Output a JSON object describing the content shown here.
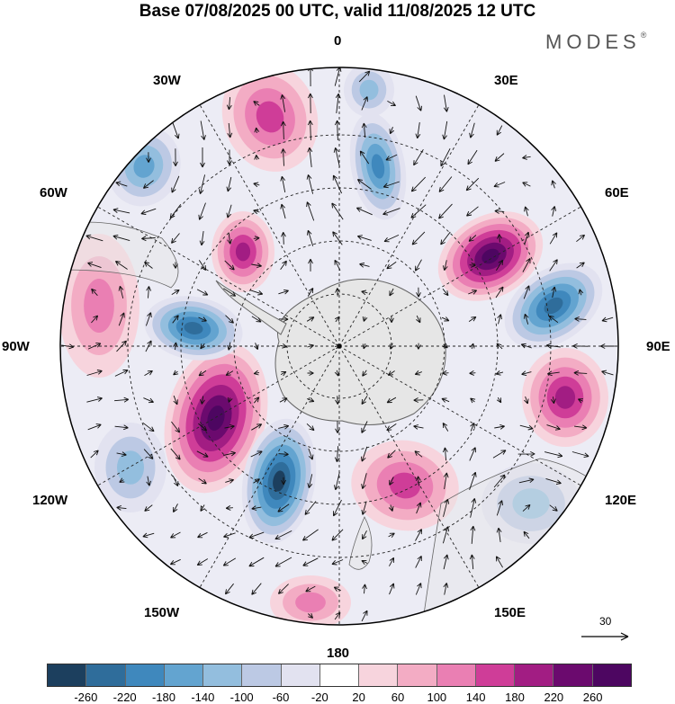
{
  "title": "Base 07/08/2025 00 UTC, valid 11/08/2025 12 UTC",
  "brand": {
    "name": "MODES",
    "mark": "®"
  },
  "map": {
    "projection": "south-polar-stereographic",
    "longitude_labels": {
      "n0": "0",
      "n30e": "30E",
      "n60e": "60E",
      "n90e": "90E",
      "n120e": "120E",
      "n150e": "150E",
      "n180": "180",
      "n150w": "150W",
      "n120w": "120W",
      "n90w": "90W",
      "n60w": "60W",
      "n30w": "30W"
    },
    "reference_vector": "30",
    "colors": {
      "land": "#e6e6e6",
      "coast": "#666666",
      "grid": "#222222",
      "vector": "#111111"
    }
  },
  "legend": {
    "ticks": [
      "-260",
      "-220",
      "-180",
      "-140",
      "-100",
      "-60",
      "-20",
      "20",
      "60",
      "100",
      "140",
      "180",
      "220",
      "260"
    ],
    "colors": [
      "#1c3f5e",
      "#2f6d9b",
      "#3f88bd",
      "#63a4d0",
      "#93bede",
      "#bcc9e4",
      "#e2e2f0",
      "#ffffff",
      "#f7d4dd",
      "#f3acc4",
      "#ea7fb3",
      "#cf3d98",
      "#a21d83",
      "#6b0a6e",
      "#4d0661"
    ]
  }
}
